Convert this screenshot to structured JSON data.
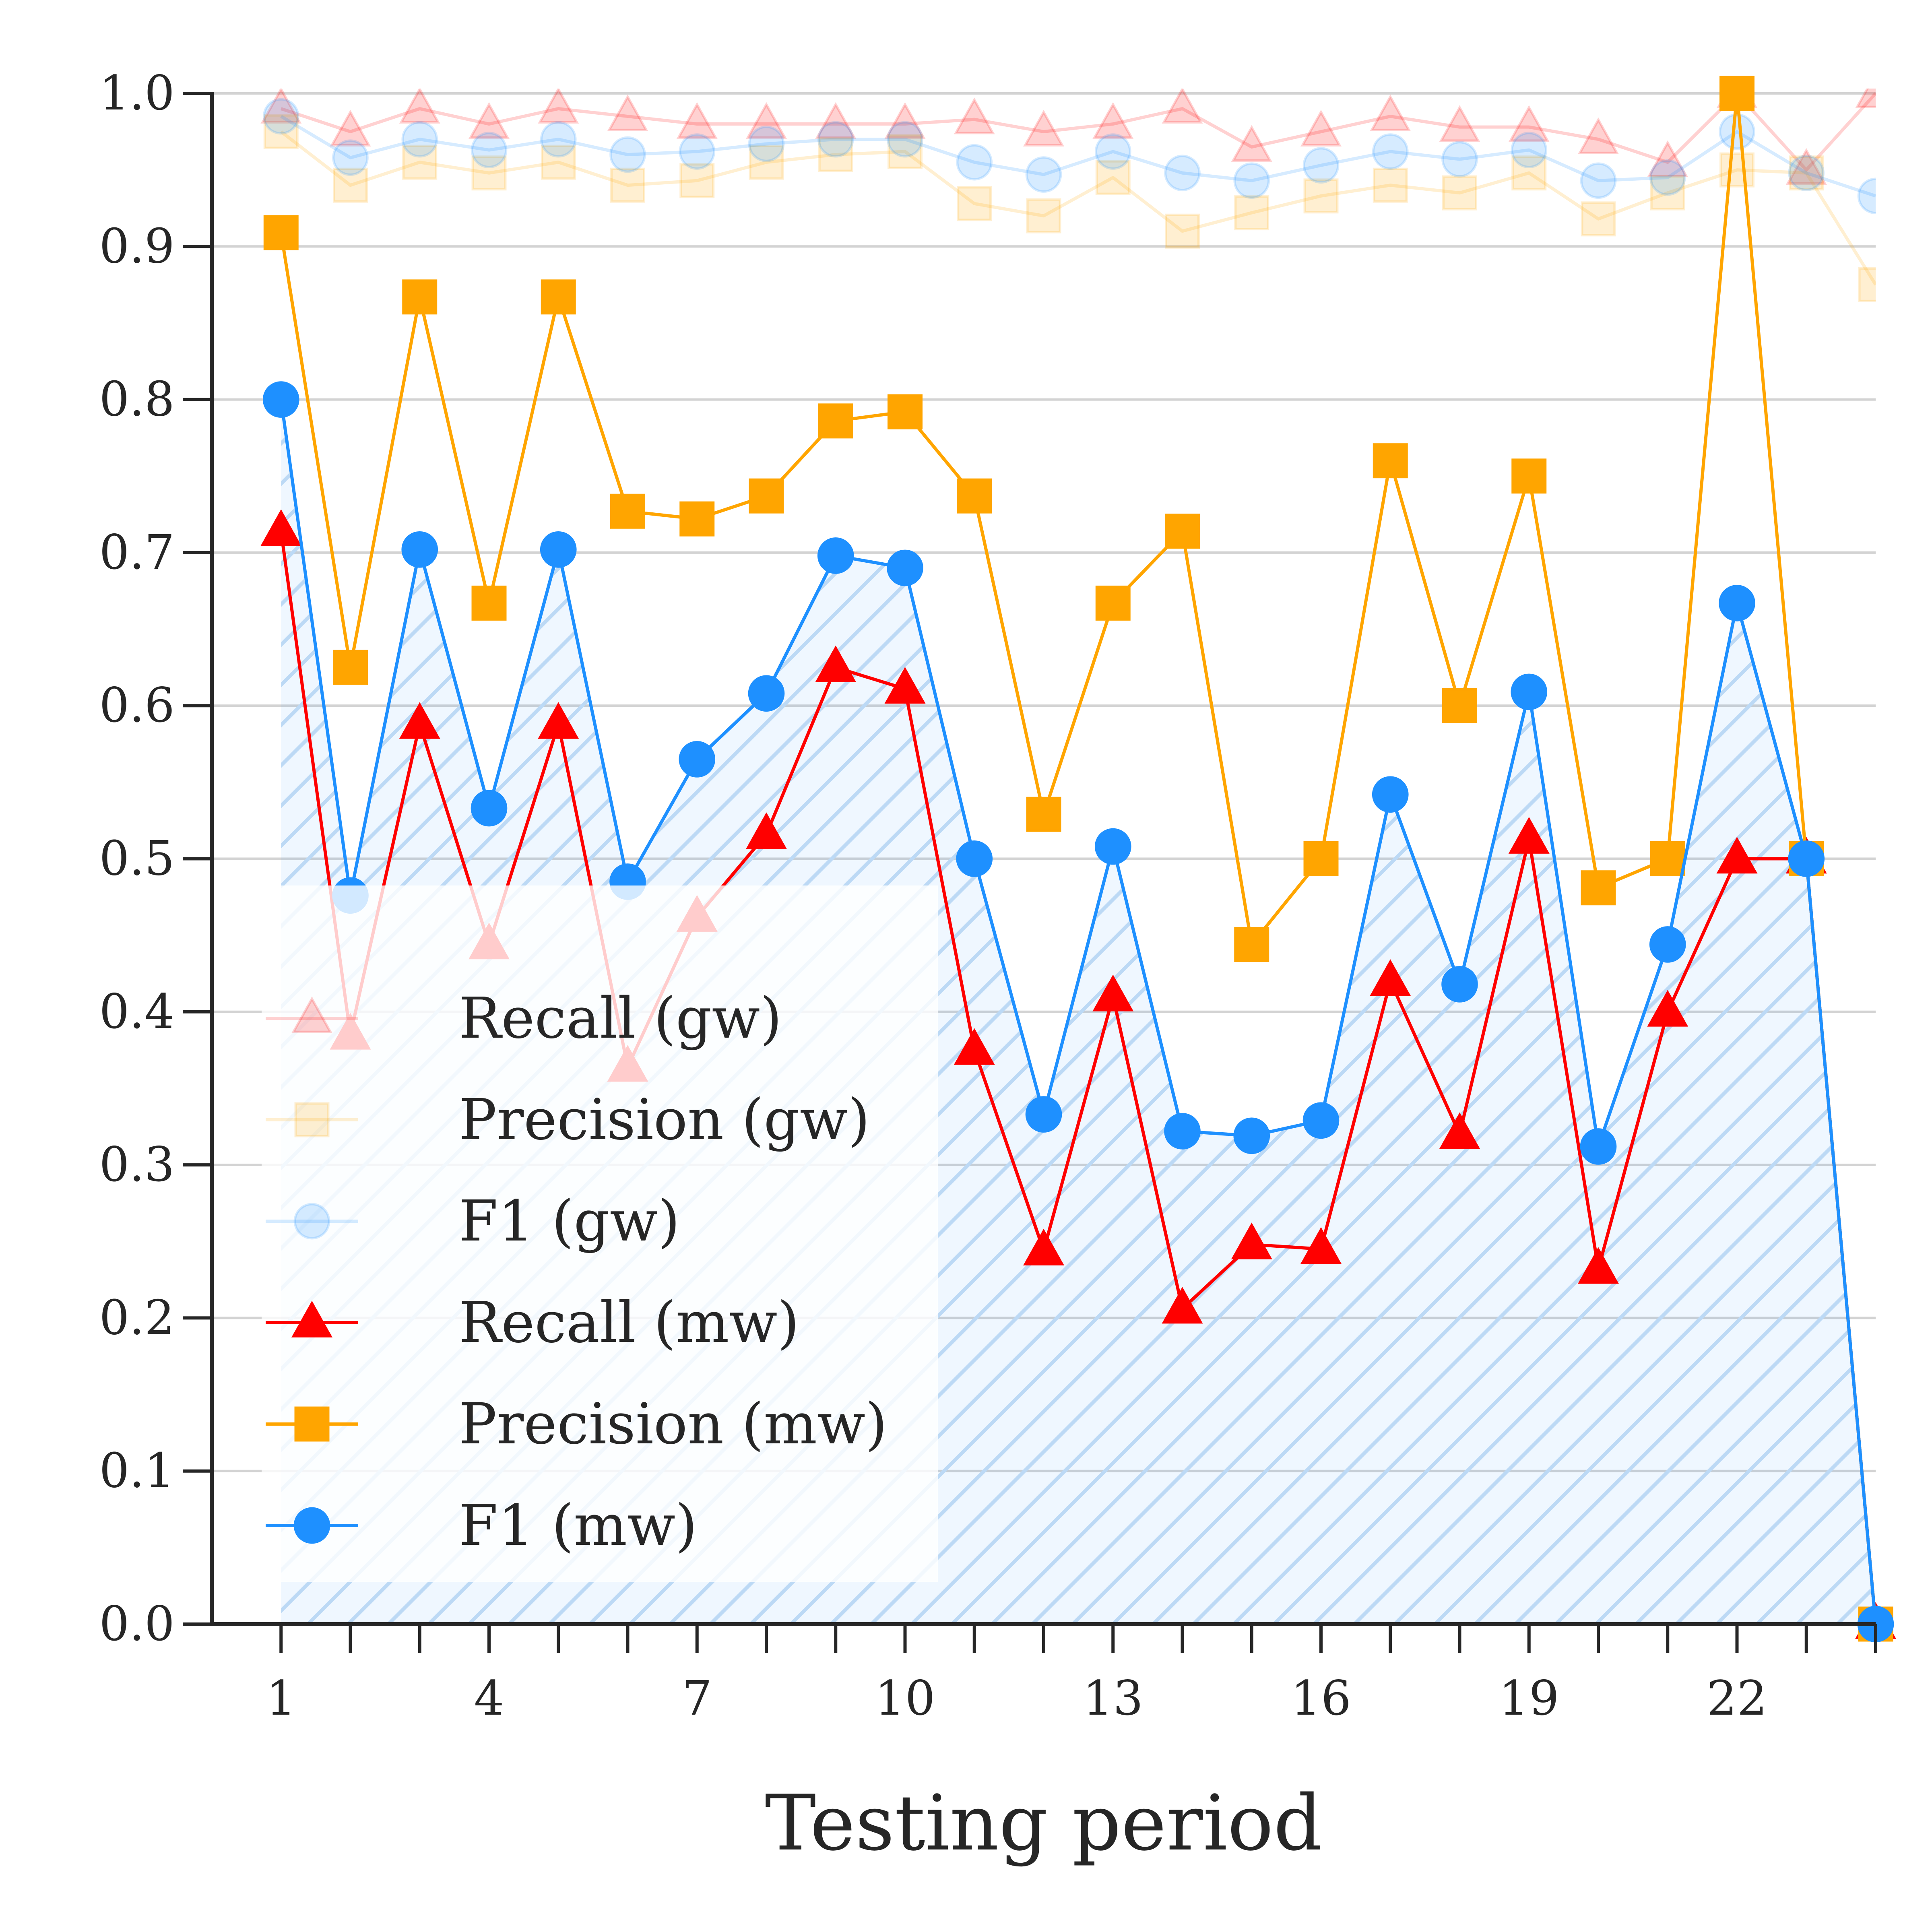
{
  "chart_data": {
    "type": "line",
    "title": "",
    "xlabel": "Testing period",
    "ylabel": "",
    "xlim": [
      0,
      24
    ],
    "ylim": [
      0.0,
      1.0
    ],
    "x_ticks": [
      1,
      4,
      7,
      10,
      13,
      16,
      19,
      22
    ],
    "y_ticks": [
      "0.0",
      "0.1",
      "0.2",
      "0.3",
      "0.4",
      "0.5",
      "0.6",
      "0.7",
      "0.8",
      "0.9",
      "1.0"
    ],
    "grid": "horizontal",
    "legend_position": "lower-left",
    "x": [
      1,
      2,
      3,
      4,
      5,
      6,
      7,
      8,
      9,
      10,
      11,
      12,
      13,
      14,
      15,
      16,
      17,
      18,
      19,
      20,
      21,
      22,
      23,
      24
    ],
    "hatched_area_under": "F1 (mw)",
    "series": [
      {
        "name": "Recall (gw)",
        "color": "#ff0000",
        "marker": "triangle",
        "faded": true,
        "values": [
          0.99,
          0.975,
          0.99,
          0.98,
          0.99,
          0.985,
          0.98,
          0.98,
          0.98,
          0.98,
          0.983,
          0.975,
          0.98,
          0.99,
          0.965,
          0.975,
          0.985,
          0.978,
          0.978,
          0.97,
          0.955,
          1.0,
          0.95,
          1.0
        ]
      },
      {
        "name": "Precision (gw)",
        "color": "#ffa500",
        "marker": "square",
        "faded": true,
        "values": [
          0.975,
          0.94,
          0.955,
          0.948,
          0.955,
          0.94,
          0.943,
          0.955,
          0.96,
          0.962,
          0.928,
          0.92,
          0.945,
          0.91,
          0.922,
          0.933,
          0.94,
          0.935,
          0.948,
          0.918,
          0.935,
          0.95,
          0.948,
          0.875
        ]
      },
      {
        "name": "F1 (gw)",
        "color": "#1e90ff",
        "marker": "circle",
        "faded": true,
        "values": [
          0.985,
          0.958,
          0.97,
          0.963,
          0.97,
          0.96,
          0.962,
          0.967,
          0.97,
          0.97,
          0.955,
          0.947,
          0.962,
          0.948,
          0.943,
          0.953,
          0.962,
          0.957,
          0.963,
          0.943,
          0.945,
          0.975,
          0.948,
          0.933
        ]
      },
      {
        "name": "Recall (mw)",
        "color": "#ff0000",
        "marker": "triangle",
        "faded": false,
        "values": [
          0.714,
          0.385,
          0.588,
          0.444,
          0.588,
          0.364,
          0.462,
          0.516,
          0.625,
          0.611,
          0.375,
          0.244,
          0.41,
          0.206,
          0.248,
          0.245,
          0.42,
          0.32,
          0.513,
          0.232,
          0.4,
          0.5,
          0.5,
          0.0
        ]
      },
      {
        "name": "Precision (mw)",
        "color": "#ffa500",
        "marker": "square",
        "faded": false,
        "values": [
          0.909,
          0.625,
          0.867,
          0.667,
          0.867,
          0.727,
          0.722,
          0.737,
          0.786,
          0.792,
          0.737,
          0.529,
          0.667,
          0.714,
          0.444,
          0.5,
          0.76,
          0.6,
          0.75,
          0.481,
          0.5,
          1.0,
          0.5,
          0.0
        ]
      },
      {
        "name": "F1 (mw)",
        "color": "#1e90ff",
        "marker": "circle",
        "faded": false,
        "values": [
          0.8,
          0.476,
          0.702,
          0.533,
          0.702,
          0.485,
          0.565,
          0.608,
          0.698,
          0.69,
          0.5,
          0.333,
          0.508,
          0.322,
          0.319,
          0.329,
          0.542,
          0.418,
          0.609,
          0.312,
          0.444,
          0.667,
          0.5,
          0.0
        ]
      }
    ]
  }
}
